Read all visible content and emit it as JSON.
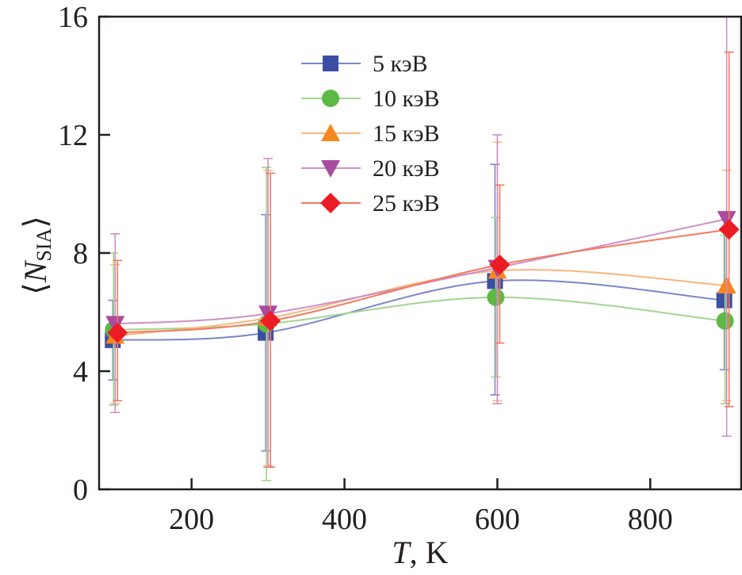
{
  "chart_data": {
    "type": "line",
    "title": "",
    "xlabel": "T, K",
    "xlabel_italic": "T",
    "xlabel_unit": ", K",
    "ylabel": "⟨N_SIA⟩",
    "ylabel_main": "N",
    "ylabel_sub": "SIA",
    "xlim": [
      79,
      919
    ],
    "ylim": [
      0,
      16
    ],
    "xticks": [
      200,
      400,
      600,
      800
    ],
    "yticks": [
      0,
      4,
      8,
      12,
      16
    ],
    "grid": false,
    "legend_position": "top-center",
    "x": [
      100,
      300,
      600,
      900
    ],
    "series": [
      {
        "name": "5 кэВ",
        "color": "#3a4fa3",
        "line": "#7c86c8",
        "marker": "square",
        "dx": -3,
        "values": [
          5.05,
          5.3,
          7.05,
          6.4
        ],
        "err_low": [
          3.7,
          1.3,
          3.2,
          4.05
        ],
        "err_high": [
          6.4,
          9.3,
          11.0,
          8.75
        ]
      },
      {
        "name": "10 кэВ",
        "color": "#5cb946",
        "line": "#9fd58e",
        "marker": "circle",
        "dx": -2,
        "values": [
          5.4,
          5.6,
          6.5,
          5.7
        ],
        "err_low": [
          2.85,
          0.3,
          3.8,
          2.9
        ],
        "err_high": [
          8.0,
          10.9,
          9.2,
          8.6
        ]
      },
      {
        "name": "15 кэВ",
        "color": "#f7861f",
        "line": "#fbb57a",
        "marker": "triangle-up",
        "dx": 0,
        "values": [
          5.2,
          5.8,
          7.4,
          6.9
        ],
        "err_low": [
          2.9,
          0.8,
          3.0,
          3.0
        ],
        "err_high": [
          7.6,
          10.8,
          11.75,
          10.8
        ]
      },
      {
        "name": "20 кэВ",
        "color": "#a94b9e",
        "line": "#cf8fc6",
        "marker": "triangle-down",
        "dx": 0,
        "values": [
          5.6,
          5.95,
          7.5,
          9.15
        ],
        "err_low": [
          2.6,
          0.75,
          2.9,
          1.8
        ],
        "err_high": [
          8.65,
          11.2,
          12.0,
          16.5
        ]
      },
      {
        "name": "25 кэВ",
        "color": "#ec1c24",
        "line": "#f47a5e",
        "marker": "diamond",
        "dx": 3,
        "values": [
          5.3,
          5.7,
          7.6,
          8.8
        ],
        "err_low": [
          3.0,
          0.75,
          4.95,
          2.8
        ],
        "err_high": [
          7.75,
          10.7,
          10.3,
          14.8
        ]
      }
    ]
  }
}
